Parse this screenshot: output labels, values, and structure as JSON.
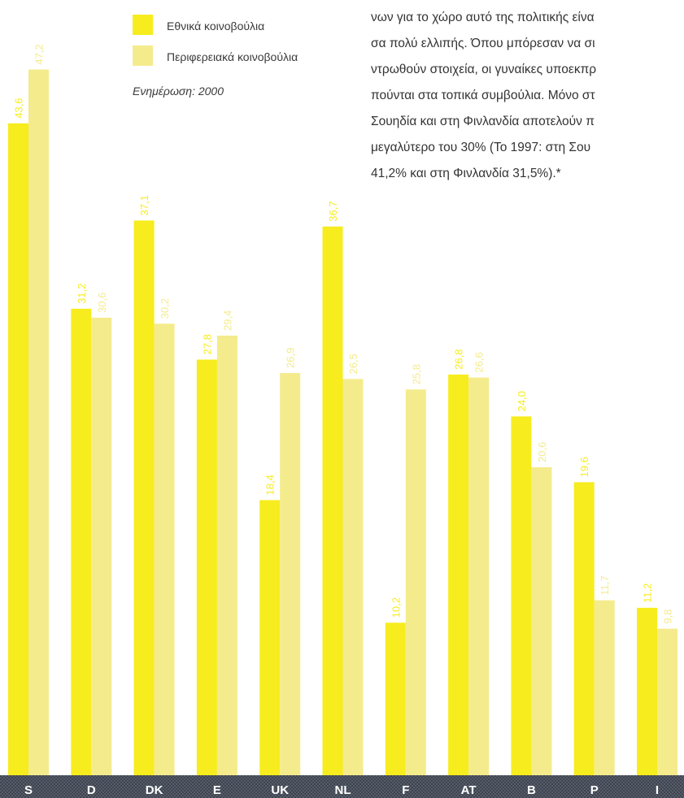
{
  "legend": {
    "items": [
      {
        "label": "Εθνικά κοινοβούλια",
        "color": "#f7ec1e"
      },
      {
        "label": "Περιφερειακά κοινοβούλια",
        "color": "#f4eb8c"
      }
    ],
    "update_note": "Ενημέρωση: 2000"
  },
  "body_text": {
    "lines": [
      "νων για το χώρο αυτό της πολιτικής είνα",
      "σα πολύ ελλιπής. Όπου μπόρεσαν να σι",
      "ντρωθούν στοιχεία, οι γυναίκες υποεκπρ",
      "πούνται στα τοπικά συμβούλια. Μόνο στ",
      "Σουηδία και στη Φινλανδία αποτελούν π",
      "μεγαλύτερο του 30% (Το 1997: στη Σου",
      "41,2% και στη Φινλανδία 31,5%).*"
    ]
  },
  "chart_data": {
    "type": "bar",
    "categories": [
      "S",
      "D",
      "DK",
      "E",
      "UK",
      "NL",
      "F",
      "AT",
      "B",
      "P",
      "I"
    ],
    "series": [
      {
        "name": "Εθνικά κοινοβούλια",
        "values": [
          43.6,
          31.2,
          37.1,
          27.8,
          18.4,
          36.7,
          10.2,
          26.8,
          24.0,
          19.6,
          11.2
        ],
        "labels": [
          "43,6",
          "31,2",
          "37,1",
          "27,8",
          "18,4",
          "36,7",
          "10,2",
          "26,8",
          "24,0",
          "19,6",
          "11,2"
        ],
        "color": "#f7ec1e"
      },
      {
        "name": "Περιφερειακά κοινοβούλια",
        "values": [
          47.2,
          30.6,
          30.2,
          29.4,
          26.9,
          26.5,
          25.8,
          26.6,
          20.6,
          11.7,
          9.8
        ],
        "labels": [
          "47,2",
          "30,6",
          "30,2",
          "29,4",
          "26,9",
          "26,5",
          "25,8",
          "26,6",
          "20,6",
          "11,7",
          "9,8"
        ],
        "color": "#f4eb8c"
      }
    ],
    "value_label_colors": [
      "#ffffff",
      "#ffffff"
    ],
    "axis_bar_color": "#3d4450",
    "ylim": [
      0,
      48
    ],
    "grid": false
  }
}
